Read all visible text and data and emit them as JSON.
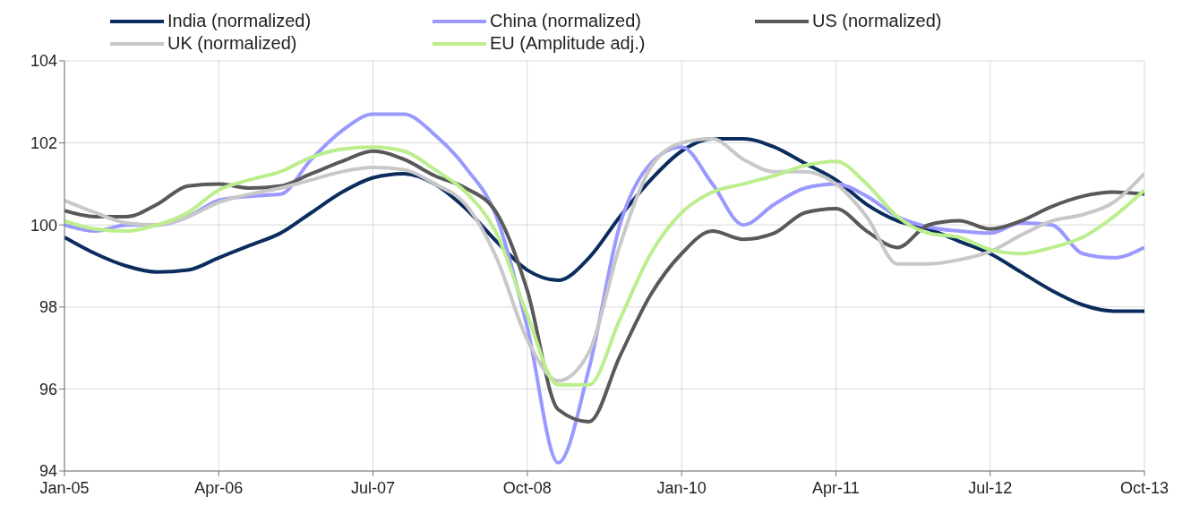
{
  "chart_data": {
    "type": "line",
    "legend": "top",
    "grid": true,
    "marker": "none",
    "line_style": "solid",
    "x": [
      "2005-01",
      "2005-04",
      "2005-07",
      "2005-10",
      "2006-01",
      "2006-04",
      "2006-07",
      "2006-10",
      "2007-01",
      "2007-04",
      "2007-07",
      "2007-10",
      "2008-01",
      "2008-04",
      "2008-07",
      "2008-10",
      "2009-01",
      "2009-04",
      "2009-07",
      "2009-10",
      "2010-01",
      "2010-04",
      "2010-07",
      "2010-10",
      "2011-01",
      "2011-04",
      "2011-07",
      "2011-10",
      "2012-01",
      "2012-04",
      "2012-07",
      "2012-10",
      "2013-01",
      "2013-04",
      "2013-07",
      "2013-10"
    ],
    "xlim": [
      "2005-01",
      "2013-10"
    ],
    "xticks": [
      {
        "value": "2005-01",
        "label": "Jan-05"
      },
      {
        "value": "2006-04",
        "label": "Apr-06"
      },
      {
        "value": "2007-07",
        "label": "Jul-07"
      },
      {
        "value": "2008-10",
        "label": "Oct-08"
      },
      {
        "value": "2010-01",
        "label": "Jan-10"
      },
      {
        "value": "2011-04",
        "label": "Apr-11"
      },
      {
        "value": "2012-07",
        "label": "Jul-12"
      },
      {
        "value": "2013-10",
        "label": "Oct-13"
      }
    ],
    "ylim": [
      94,
      104
    ],
    "yticks": [
      94,
      96,
      98,
      100,
      102,
      104
    ],
    "series": [
      {
        "name": "India (normalized)",
        "color": "#0b2d5e",
        "values": [
          99.7,
          99.3,
          99.0,
          98.85,
          98.9,
          99.2,
          99.5,
          99.8,
          100.3,
          100.8,
          101.15,
          101.25,
          101.0,
          100.4,
          99.6,
          98.9,
          98.65,
          99.2,
          100.2,
          101.1,
          101.8,
          102.1,
          102.1,
          101.9,
          101.5,
          101.1,
          100.5,
          100.1,
          99.9,
          99.6,
          99.3,
          98.85,
          98.4,
          98.05,
          97.9,
          97.9
        ]
      },
      {
        "name": "China (normalized)",
        "color": "#9999ff",
        "values": [
          100.0,
          99.85,
          100.0,
          100.0,
          100.2,
          100.6,
          100.7,
          100.75,
          101.6,
          102.3,
          102.7,
          102.7,
          102.2,
          101.4,
          100.2,
          97.5,
          94.2,
          96.5,
          100.0,
          101.5,
          101.9,
          101.0,
          100.0,
          100.5,
          100.9,
          101.0,
          100.7,
          100.2,
          99.95,
          99.85,
          99.8,
          100.05,
          100.0,
          99.3,
          99.2,
          99.45
        ]
      },
      {
        "name": "US (normalized)",
        "color": "#595959",
        "values": [
          100.35,
          100.2,
          100.2,
          100.5,
          100.95,
          101.0,
          100.9,
          100.95,
          101.25,
          101.55,
          101.8,
          101.6,
          101.2,
          100.9,
          100.3,
          98.4,
          95.5,
          95.2,
          96.8,
          98.3,
          99.3,
          99.85,
          99.65,
          99.8,
          100.3,
          100.4,
          99.85,
          99.45,
          100.0,
          100.1,
          99.9,
          100.1,
          100.45,
          100.7,
          100.8,
          100.75
        ]
      },
      {
        "name": "UK (normalized)",
        "color": "#c8c8c8",
        "values": [
          100.6,
          100.3,
          100.05,
          100.0,
          100.2,
          100.55,
          100.75,
          100.9,
          101.1,
          101.3,
          101.4,
          101.35,
          101.0,
          100.5,
          99.2,
          97.2,
          96.2,
          96.9,
          99.5,
          101.4,
          102.0,
          102.1,
          101.6,
          101.3,
          101.3,
          101.0,
          100.2,
          99.05,
          99.05,
          99.15,
          99.35,
          99.75,
          100.1,
          100.25,
          100.55,
          101.25
        ]
      },
      {
        "name": "EU (Amplitude adj.)",
        "color": "#bbee8c",
        "values": [
          100.1,
          99.9,
          99.85,
          100.0,
          100.3,
          100.85,
          101.1,
          101.3,
          101.65,
          101.85,
          101.9,
          101.8,
          101.35,
          100.8,
          99.8,
          97.8,
          96.1,
          96.1,
          97.7,
          99.3,
          100.3,
          100.8,
          101.0,
          101.2,
          101.45,
          101.55,
          101.0,
          100.2,
          99.8,
          99.7,
          99.4,
          99.3,
          99.45,
          99.7,
          100.2,
          100.85
        ]
      }
    ]
  }
}
